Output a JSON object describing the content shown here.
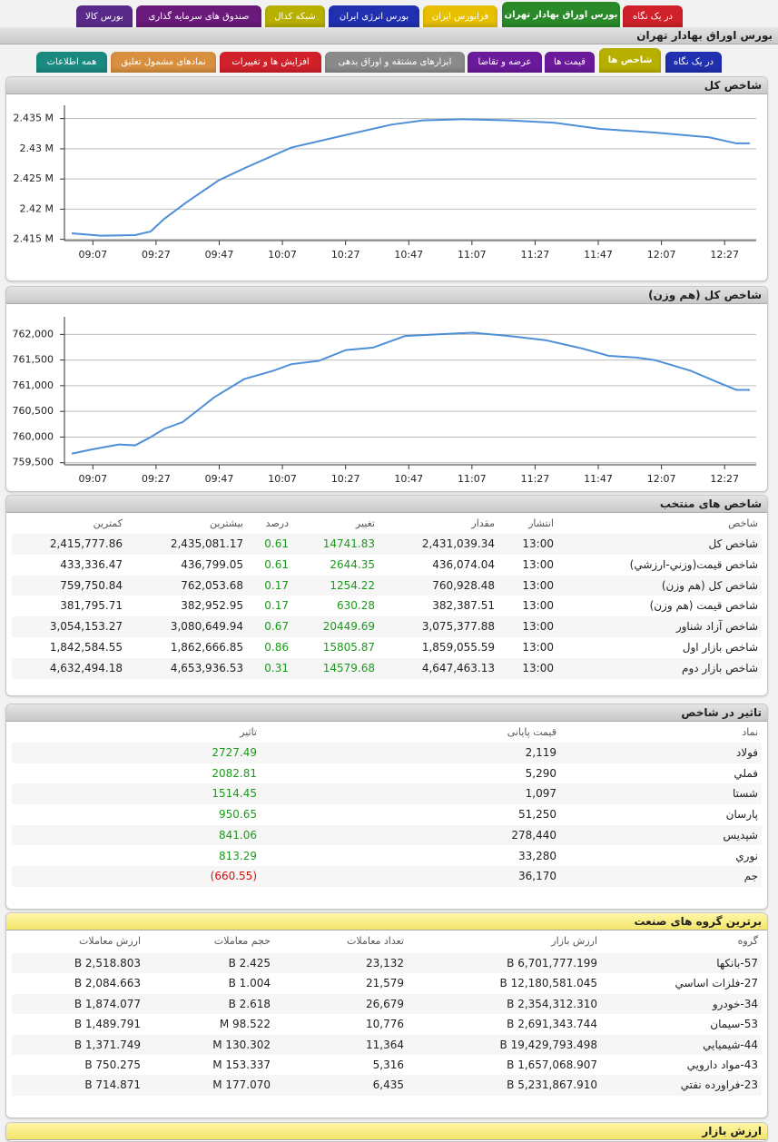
{
  "nav": {
    "main_tabs": [
      {
        "label": "در یک نگاه",
        "color": "#d0202a"
      },
      {
        "label": "بورس اوراق بهادار تهران",
        "color": "#2a8a2a"
      },
      {
        "label": "فرابورس ایران",
        "color": "#e8c000"
      },
      {
        "label": "بورس انرژی ایران",
        "color": "#2030b0"
      },
      {
        "label": "شبکه کدال",
        "color": "#b8b000"
      },
      {
        "label": "صندوق های سرمایه گذاری",
        "color": "#6a1a7a"
      },
      {
        "label": "بورس کالا",
        "color": "#5a2a8a"
      }
    ],
    "title": "بورس اوراق بهادار تهران",
    "sub_tabs": [
      {
        "label": "در یک نگاه",
        "color": "#2030b0"
      },
      {
        "label": "شاخص ها",
        "color": "#b8b000"
      },
      {
        "label": "قیمت ها",
        "color": "#6a1a9a"
      },
      {
        "label": "عرضه و تقاضا",
        "color": "#6a1a9a"
      },
      {
        "label": "ابزارهای مشتقه و اوراق بدهی",
        "color": "#8a8a8a"
      },
      {
        "label": "افزایش ها و تغییرات",
        "color": "#d0202a"
      },
      {
        "label": "نمادهای مشمول تعلیق",
        "color": "#d89040"
      },
      {
        "label": "همه اطلاعات",
        "color": "#1a8a80"
      }
    ]
  },
  "chart_data": [
    {
      "type": "line",
      "title": "شاخص کل",
      "x": [
        540.3,
        549.5,
        560.4,
        565.3,
        569.6,
        576.8,
        586.9,
        595.5,
        609.8,
        627.1,
        641.5,
        651.5,
        664.5,
        678.8,
        693.2,
        707.6,
        724.8,
        742.1,
        750.7,
        755
      ],
      "series": [
        {
          "color": "#4f8fd8",
          "values": [
            2416000,
            2415600,
            2415700,
            2416300,
            2418400,
            2421200,
            2424800,
            2426900,
            2430200,
            2432300,
            2434000,
            2434700,
            2434900,
            2434700,
            2434300,
            2433300,
            2432700,
            2431900,
            2430900,
            2430900
          ]
        }
      ],
      "xlim": [
        538,
        757
      ],
      "ylim": [
        2414800,
        2436000
      ],
      "xticks": [
        {
          "value": 547,
          "label": "09:07"
        },
        {
          "value": 567,
          "label": "09:27"
        },
        {
          "value": 587,
          "label": "09:47"
        },
        {
          "value": 607,
          "label": "10:07"
        },
        {
          "value": 627,
          "label": "10:27"
        },
        {
          "value": 647,
          "label": "10:47"
        },
        {
          "value": 667,
          "label": "11:07"
        },
        {
          "value": 687,
          "label": "11:27"
        },
        {
          "value": 707,
          "label": "11:47"
        },
        {
          "value": 727,
          "label": "12:07"
        },
        {
          "value": 747,
          "label": "12:27"
        }
      ],
      "yticks": [
        {
          "value": 2415000,
          "label": "2.415 M"
        },
        {
          "value": 2420000,
          "label": "2.42 M"
        },
        {
          "value": 2425000,
          "label": "2.425 M"
        },
        {
          "value": 2430000,
          "label": "2.43 M"
        },
        {
          "value": 2435000,
          "label": "2.435 M"
        }
      ],
      "grid": true
    },
    {
      "type": "line",
      "title": "شاخص کل (هم وزن)",
      "x": [
        540.3,
        546.6,
        555.2,
        560.4,
        565.3,
        569.6,
        575.4,
        585.4,
        594.9,
        604.1,
        609.8,
        618.5,
        627.1,
        635.7,
        645.8,
        655.8,
        667.3,
        678.8,
        690.3,
        701.8,
        710.4,
        719.1,
        724.8,
        736.3,
        744.9,
        750.7,
        755
      ],
      "series": [
        {
          "color": "#4f8fd8",
          "values": [
            759677,
            759758,
            759855,
            759839,
            760000,
            760161,
            760290,
            760774,
            761129,
            761290,
            761419,
            761484,
            761694,
            761742,
            761968,
            762000,
            762032,
            761968,
            761887,
            761726,
            761581,
            761548,
            761500,
            761290,
            761065,
            760919,
            760919
          ]
        }
      ],
      "xlim": [
        538,
        757
      ],
      "ylim": [
        759460,
        762200
      ],
      "xticks": [
        {
          "value": 547,
          "label": "09:07"
        },
        {
          "value": 567,
          "label": "09:27"
        },
        {
          "value": 587,
          "label": "09:47"
        },
        {
          "value": 607,
          "label": "10:07"
        },
        {
          "value": 627,
          "label": "10:27"
        },
        {
          "value": 647,
          "label": "10:47"
        },
        {
          "value": 667,
          "label": "11:07"
        },
        {
          "value": 687,
          "label": "11:27"
        },
        {
          "value": 707,
          "label": "11:47"
        },
        {
          "value": 727,
          "label": "12:07"
        },
        {
          "value": 747,
          "label": "12:27"
        }
      ],
      "yticks": [
        {
          "value": 759500,
          "label": "759,500"
        },
        {
          "value": 760000,
          "label": "760,000"
        },
        {
          "value": 760500,
          "label": "760,500"
        },
        {
          "value": 761000,
          "label": "761,000"
        },
        {
          "value": 761500,
          "label": "761,500"
        },
        {
          "value": 762000,
          "label": "762,000"
        }
      ],
      "grid": true
    }
  ],
  "tables": [
    {
      "title": "شاخص های منتخب",
      "columns": [
        "شاخص",
        "انتشار",
        "مقدار",
        "تغییر",
        "درصد",
        "بیشترین",
        "کمترین"
      ],
      "rows": [
        [
          "شاخص کل",
          "13:00",
          "2,431,039.34",
          "14741.83",
          "0.61",
          "2,435,081.17",
          "2,415,777.86"
        ],
        [
          "شاخص قیمت(وزني-ارزشي)",
          "13:00",
          "436,074.04",
          "2644.35",
          "0.61",
          "436,799.05",
          "433,336.47"
        ],
        [
          "شاخص کل (هم وزن)",
          "13:00",
          "760,928.48",
          "1254.22",
          "0.17",
          "762,053.68",
          "759,750.84"
        ],
        [
          "شاخص قیمت (هم وزن)",
          "13:00",
          "382,387.51",
          "630.28",
          "0.17",
          "382,952.95",
          "381,795.71"
        ],
        [
          "شاخص آزاد شناور",
          "13:00",
          "3,075,377.88",
          "20449.69",
          "0.67",
          "3,080,649.94",
          "3,054,153.27"
        ],
        [
          "شاخص بازار اول",
          "13:00",
          "1,859,055.59",
          "15805.87",
          "0.86",
          "1,862,666.85",
          "1,842,584.55"
        ],
        [
          "شاخص بازار دوم",
          "13:00",
          "4,647,463.13",
          "14579.68",
          "0.31",
          "4,653,936.53",
          "4,632,494.18"
        ]
      ]
    },
    {
      "title": "تاثیر در شاخص",
      "columns": [
        "نماد",
        "قیمت پایانی",
        "تاثیر"
      ],
      "rows": [
        [
          "فولاد",
          "2,119",
          "2727.49"
        ],
        [
          "فملي",
          "5,290",
          "2082.81"
        ],
        [
          "شستا",
          "1,097",
          "1514.45"
        ],
        [
          "پارسان",
          "51,250",
          "950.65"
        ],
        [
          "شپدیس",
          "278,440",
          "841.06"
        ],
        [
          "نوري",
          "33,280",
          "813.29"
        ],
        [
          "جم",
          "36,170",
          "(660.55)"
        ]
      ]
    },
    {
      "title": "برترین گروه های صنعت",
      "columns": [
        "گروه",
        "ارزش بازار",
        "تعداد معاملات",
        "حجم معاملات",
        "ارزش معاملات"
      ],
      "rows": [
        [
          "57-بانکها",
          "6,701,777.199 B",
          "23,132",
          "2.425 B",
          "2,518.803 B"
        ],
        [
          "27-فلزات اساسي",
          "12,180,581.045 B",
          "21,579",
          "1.004 B",
          "2,084.663 B"
        ],
        [
          "34-خودرو",
          "2,354,312.310 B",
          "26,679",
          "2.618 B",
          "1,874.077 B"
        ],
        [
          "53-سیمان",
          "2,691,343.744 B",
          "10,776",
          "98.522 M",
          "1,489.791 B"
        ],
        [
          "44-شیمیایي",
          "19,429,793.498 B",
          "11,364",
          "130.302 M",
          "1,371.749 B"
        ],
        [
          "43-مواد دارویي",
          "1,657,068.907 B",
          "5,316",
          "153.337 M",
          "750.275 B"
        ],
        [
          "23-فراورده نفتي",
          "5,231,867.910 B",
          "6,435",
          "177.070 M",
          "714.871 B"
        ]
      ]
    }
  ],
  "footer": {
    "title": "ارزش بازار"
  }
}
